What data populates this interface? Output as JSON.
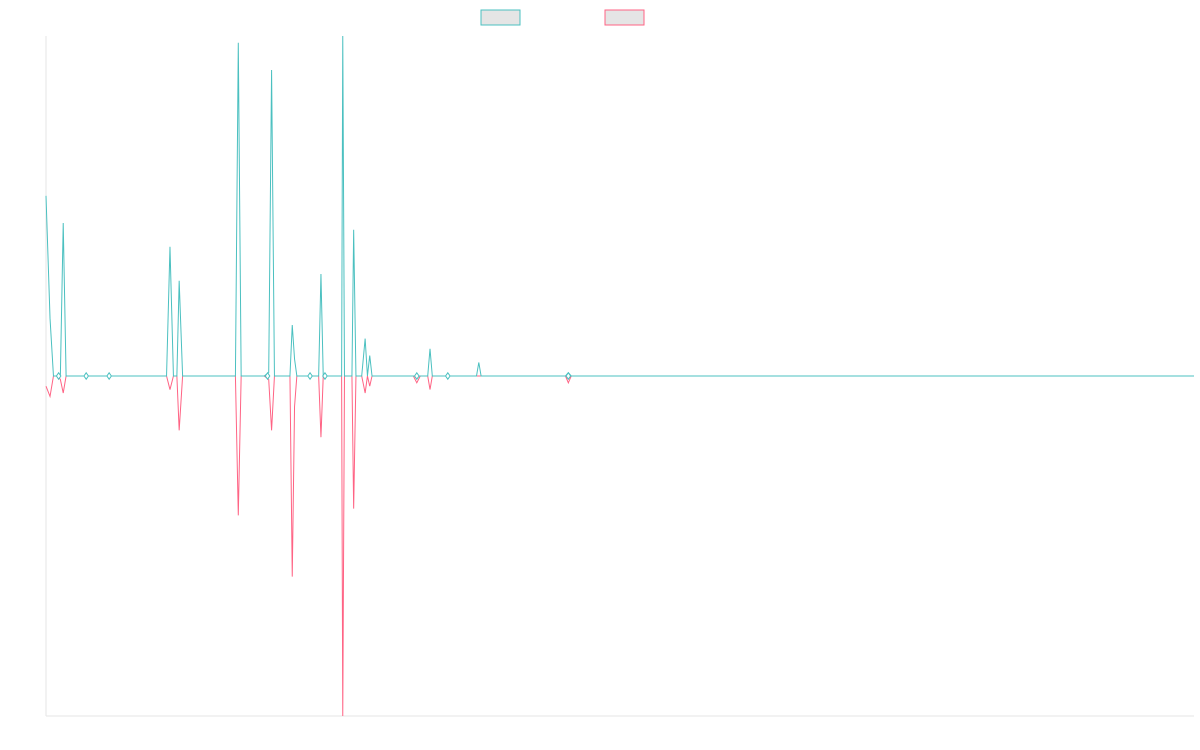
{
  "colors": {
    "teal": "#4bc0c0",
    "pink": "#ff6384",
    "legend_fill": "#e5e5e5",
    "axis": "#e6e6e6"
  },
  "chart_data": {
    "type": "line",
    "x_range": [
      0,
      200
    ],
    "ylim": [
      -1,
      1
    ],
    "grid": false,
    "legend_position": "top-center",
    "series": [
      {
        "color_key": "teal",
        "points": [
          [
            0,
            0.53
          ],
          [
            0.7,
            0.17
          ],
          [
            1.3,
            0
          ],
          [
            2,
            0
          ],
          [
            2.5,
            0
          ],
          [
            3,
            0.45
          ],
          [
            3.5,
            0
          ],
          [
            4,
            0
          ],
          [
            7,
            0
          ],
          [
            11,
            0
          ],
          [
            21,
            0
          ],
          [
            21.6,
            0.38
          ],
          [
            22.2,
            0
          ],
          [
            22.8,
            0
          ],
          [
            23.2,
            0.28
          ],
          [
            23.8,
            0
          ],
          [
            33,
            0
          ],
          [
            33.5,
            0.98
          ],
          [
            34,
            0
          ],
          [
            38,
            0
          ],
          [
            38.8,
            0.01
          ],
          [
            39.3,
            0.9
          ],
          [
            39.8,
            0
          ],
          [
            42.5,
            0
          ],
          [
            42.9,
            0.15
          ],
          [
            43.3,
            0.05
          ],
          [
            43.7,
            0
          ],
          [
            46,
            0
          ],
          [
            47.5,
            0
          ],
          [
            47.9,
            0.3
          ],
          [
            48.3,
            0
          ],
          [
            51.5,
            0
          ],
          [
            51.7,
            1.0
          ],
          [
            52,
            0
          ],
          [
            53.3,
            0
          ],
          [
            53.6,
            0.43
          ],
          [
            54,
            0
          ],
          [
            55,
            0
          ],
          [
            55.6,
            0.11
          ],
          [
            56,
            0
          ],
          [
            56.4,
            0.06
          ],
          [
            56.8,
            0
          ],
          [
            64,
            0
          ],
          [
            66.5,
            0
          ],
          [
            66.9,
            0.08
          ],
          [
            67.3,
            0
          ],
          [
            70,
            0
          ],
          [
            75,
            0
          ],
          [
            75.4,
            0.04
          ],
          [
            75.8,
            0
          ],
          [
            90.5,
            0
          ],
          [
            91,
            0.01
          ],
          [
            91.5,
            0
          ],
          [
            200,
            0
          ]
        ]
      },
      {
        "color_key": "pink",
        "points": [
          [
            0,
            -0.03
          ],
          [
            0.7,
            -0.06
          ],
          [
            1.3,
            0
          ],
          [
            2,
            0
          ],
          [
            2.5,
            -0.01
          ],
          [
            3,
            -0.05
          ],
          [
            3.5,
            0
          ],
          [
            21,
            0
          ],
          [
            21.6,
            -0.04
          ],
          [
            22.2,
            0
          ],
          [
            22.8,
            0
          ],
          [
            23.2,
            -0.16
          ],
          [
            23.8,
            0
          ],
          [
            33,
            0
          ],
          [
            33.5,
            -0.41
          ],
          [
            34,
            0
          ],
          [
            38,
            0
          ],
          [
            38.8,
            -0.01
          ],
          [
            39.3,
            -0.16
          ],
          [
            39.8,
            0
          ],
          [
            42.5,
            0
          ],
          [
            42.9,
            -0.59
          ],
          [
            43.3,
            -0.09
          ],
          [
            43.7,
            0
          ],
          [
            47.5,
            0
          ],
          [
            47.9,
            -0.18
          ],
          [
            48.3,
            0
          ],
          [
            51.5,
            0
          ],
          [
            51.7,
            -1.0
          ],
          [
            52,
            0
          ],
          [
            53.3,
            0
          ],
          [
            53.6,
            -0.39
          ],
          [
            54,
            0
          ],
          [
            55,
            0
          ],
          [
            55.6,
            -0.05
          ],
          [
            56,
            0
          ],
          [
            56.4,
            -0.03
          ],
          [
            56.8,
            0
          ],
          [
            64,
            0
          ],
          [
            64.6,
            -0.02
          ],
          [
            65.2,
            0
          ],
          [
            66.5,
            0
          ],
          [
            66.9,
            -0.04
          ],
          [
            67.3,
            0
          ],
          [
            90.5,
            0
          ],
          [
            91,
            -0.02
          ],
          [
            91.5,
            0
          ],
          [
            200,
            0
          ]
        ]
      }
    ],
    "markers": [
      {
        "x": 2.2,
        "y": 0
      },
      {
        "x": 7,
        "y": 0
      },
      {
        "x": 11,
        "y": 0
      },
      {
        "x": 38.6,
        "y": 0
      },
      {
        "x": 46,
        "y": 0
      },
      {
        "x": 48.6,
        "y": 0
      },
      {
        "x": 64.6,
        "y": 0
      },
      {
        "x": 70,
        "y": 0
      },
      {
        "x": 91,
        "y": 0
      }
    ]
  }
}
